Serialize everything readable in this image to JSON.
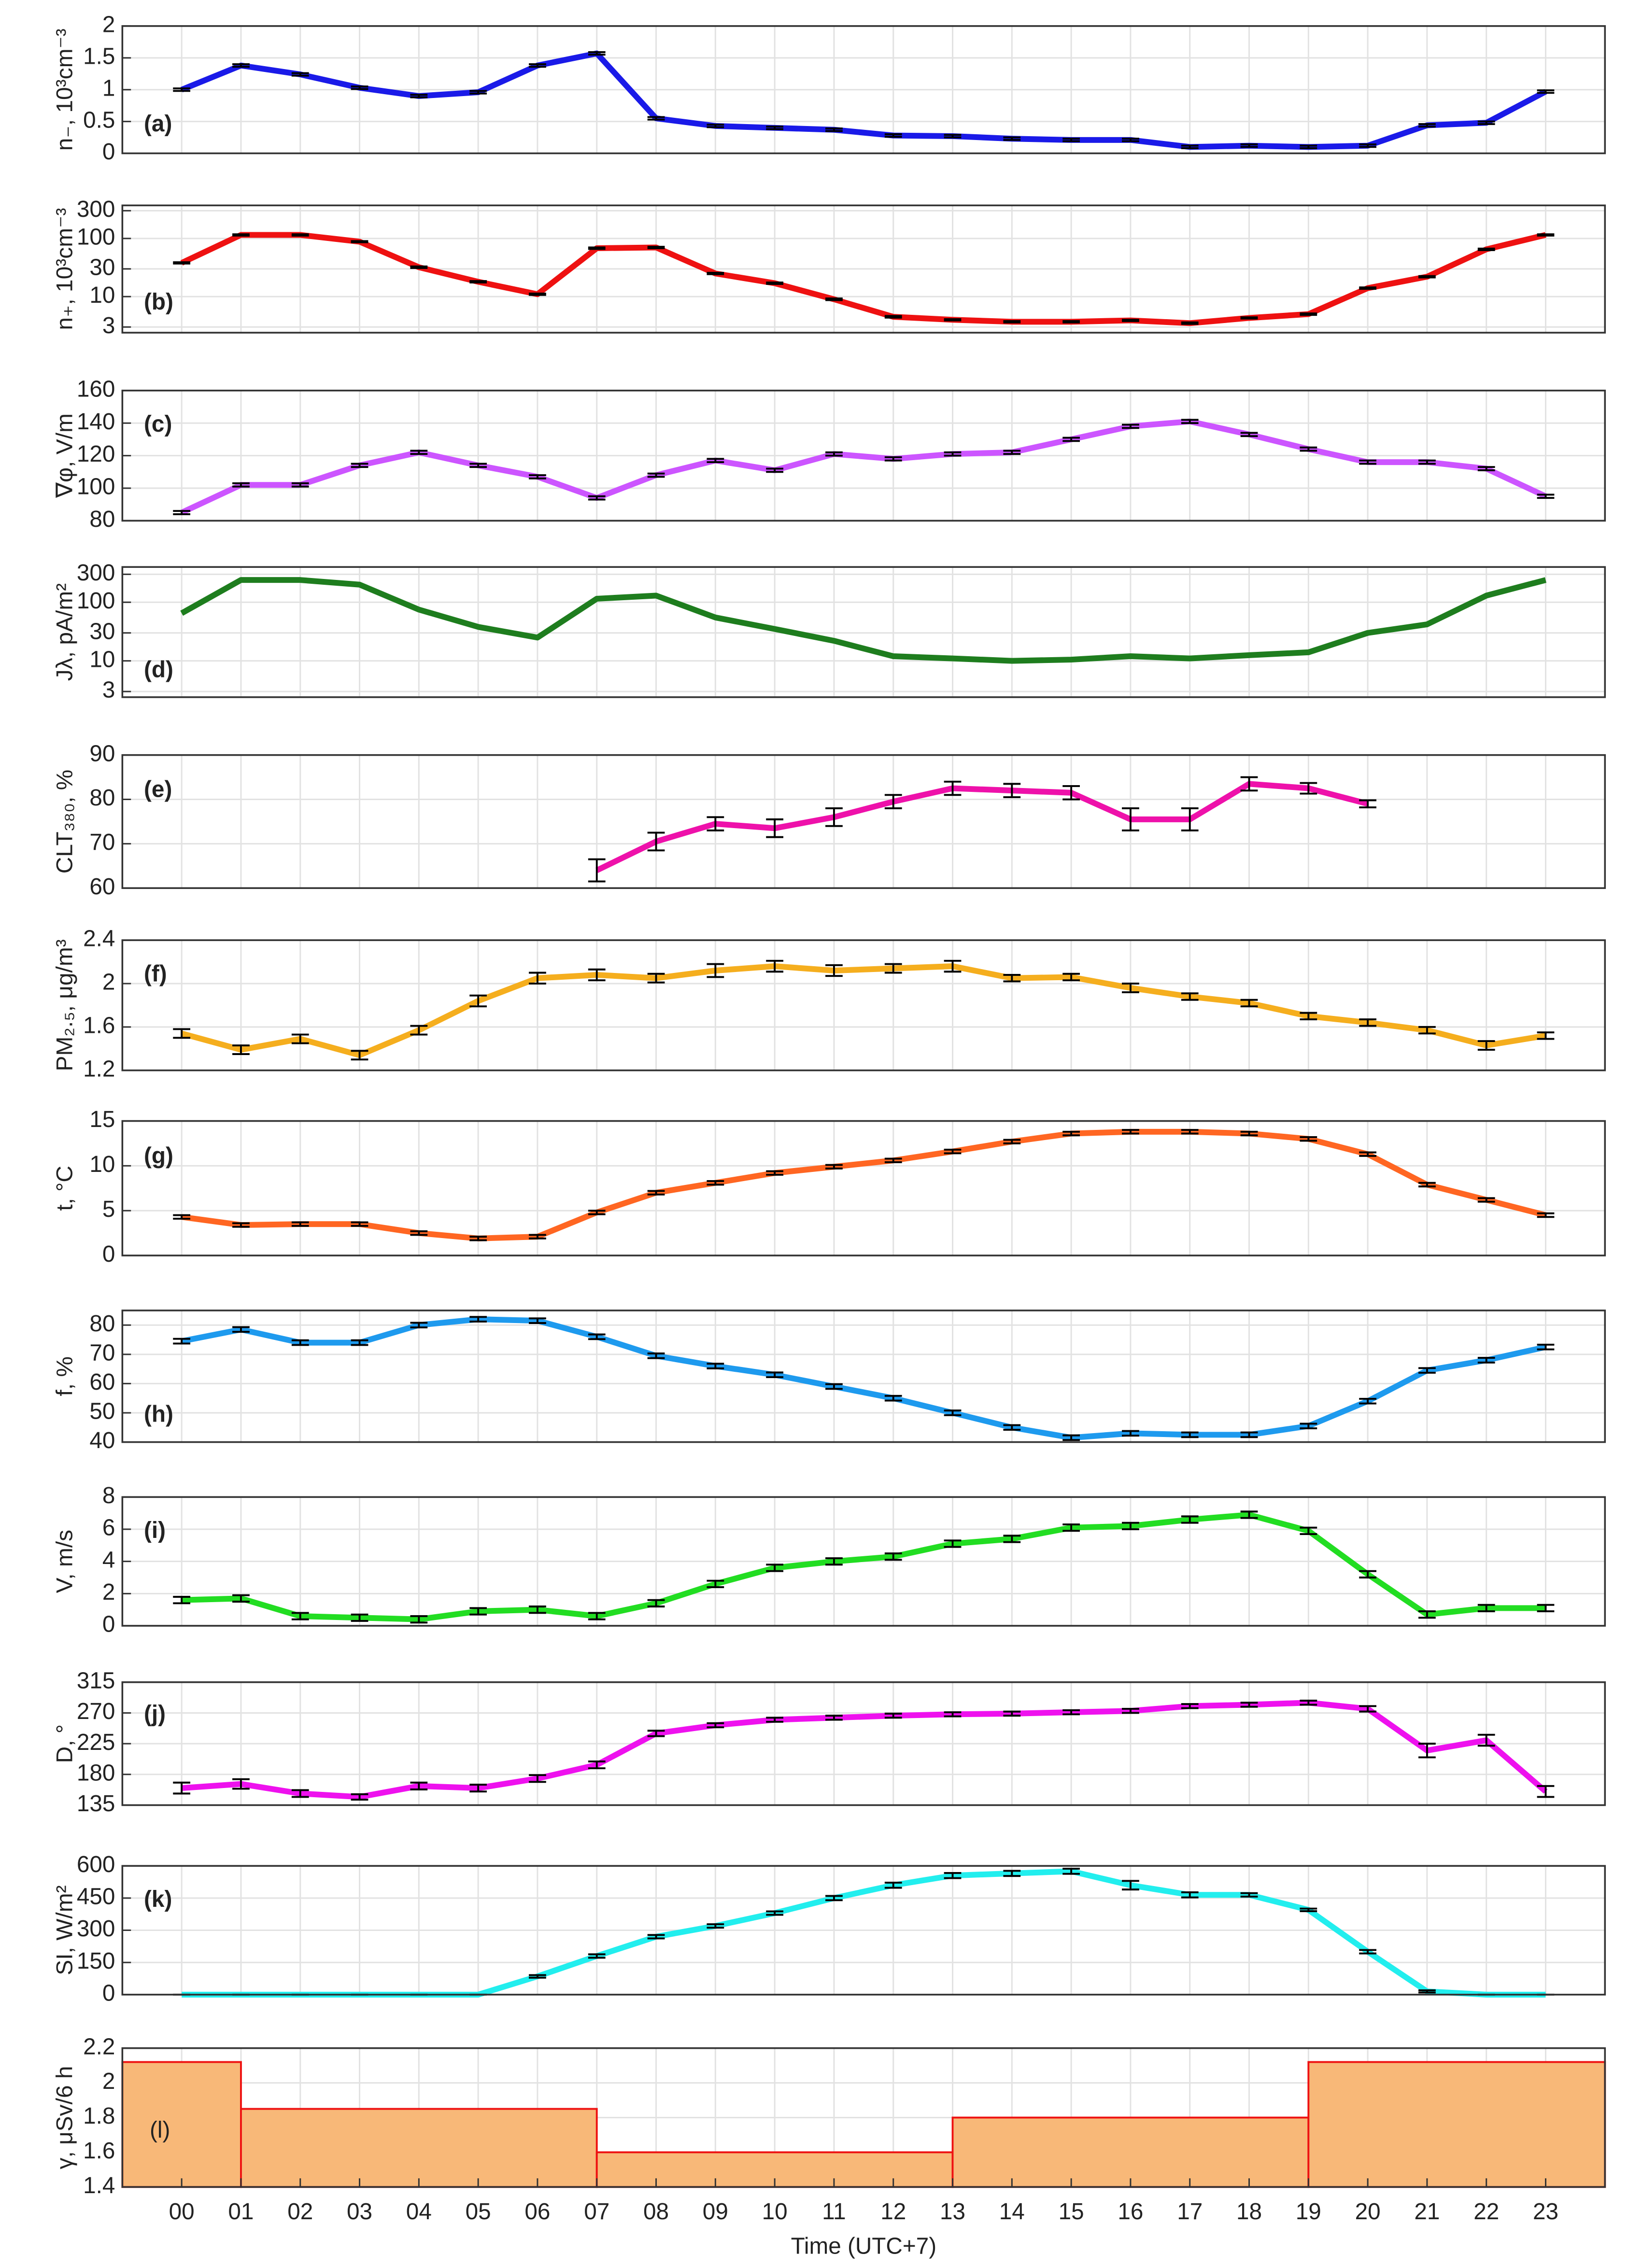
{
  "chart_data": [
    {
      "type": "line",
      "tag": "(a)",
      "ylabel": "n₋, 10³cm⁻³",
      "color": "#1a1ae8",
      "ylim": [
        0,
        2
      ],
      "yticks": [
        0,
        0.5,
        1,
        1.5,
        2
      ],
      "grid": true,
      "values": [
        1.0,
        1.38,
        1.24,
        1.03,
        0.9,
        0.96,
        1.38,
        1.57,
        0.55,
        0.43,
        0.4,
        0.37,
        0.28,
        0.27,
        0.23,
        0.21,
        0.21,
        0.1,
        0.12,
        0.1,
        0.12,
        0.44,
        0.48,
        0.97
      ],
      "errors": [
        0.02,
        0.02,
        0.02,
        0.02,
        0.02,
        0.02,
        0.02,
        0.02,
        0.02,
        0.02,
        0.02,
        0.02,
        0.02,
        0.02,
        0.02,
        0.02,
        0.02,
        0.02,
        0.02,
        0.02,
        0.02,
        0.02,
        0.02,
        0.02
      ]
    },
    {
      "type": "line",
      "tag": "(b)",
      "ylabel": "n₊, 10³cm⁻³",
      "color": "#ee1111",
      "log_y": true,
      "ylim": [
        2.4,
        370
      ],
      "yticks": [
        3,
        10,
        30,
        100,
        300
      ],
      "grid": true,
      "values": [
        38,
        115,
        115,
        88,
        32,
        18,
        11,
        68,
        70,
        25,
        17,
        9,
        4.5,
        4,
        3.7,
        3.7,
        3.9,
        3.5,
        4.3,
        5,
        14,
        22,
        65,
        115
      ],
      "errors": [
        1,
        3,
        3,
        2,
        1,
        0.5,
        0.3,
        2,
        2,
        0.7,
        0.5,
        0.3,
        0.15,
        0.1,
        0.1,
        0.1,
        0.1,
        0.1,
        0.1,
        0.15,
        0.4,
        0.6,
        2,
        3
      ]
    },
    {
      "type": "line",
      "tag": "(c)",
      "ylabel": "∇φ, V/m",
      "color": "#cc55ff",
      "ylim": [
        80,
        160
      ],
      "yticks": [
        80,
        100,
        120,
        140,
        160
      ],
      "grid": true,
      "values": [
        85,
        102,
        102,
        114,
        122,
        114,
        107,
        94,
        108,
        117,
        111,
        121,
        118,
        121,
        122,
        130,
        138,
        141,
        133,
        124,
        116,
        116,
        112,
        95
      ],
      "errors": [
        1,
        1,
        1,
        1,
        1,
        1,
        1,
        1,
        1,
        1,
        1,
        1,
        1,
        1,
        1,
        1,
        1,
        1,
        1,
        1,
        1,
        1,
        1,
        1
      ]
    },
    {
      "type": "line",
      "tag": "(d)",
      "ylabel": "Jλ, pA/m²",
      "color": "#1e7d1e",
      "log_y": true,
      "ylim": [
        2.4,
        400
      ],
      "yticks": [
        3,
        10,
        30,
        100,
        300
      ],
      "grid": true,
      "values": [
        65,
        240,
        240,
        200,
        75,
        38,
        25,
        115,
        130,
        55,
        35,
        22,
        12,
        11,
        10,
        10.5,
        12,
        11,
        12.5,
        14,
        30,
        42,
        130,
        240
      ]
    },
    {
      "type": "line",
      "tag": "(e)",
      "ylabel": "CLT₃₈₀, %",
      "color": "#ee11aa",
      "ylim": [
        60,
        90
      ],
      "yticks": [
        60,
        70,
        80,
        90
      ],
      "grid": true,
      "values": [
        null,
        null,
        null,
        null,
        null,
        null,
        null,
        64,
        70.5,
        74.5,
        73.5,
        76,
        79.5,
        82.5,
        82,
        81.5,
        75.5,
        75.5,
        83.5,
        82.5,
        79,
        null,
        null,
        null
      ],
      "errors": [
        null,
        null,
        null,
        null,
        null,
        null,
        null,
        2.5,
        2,
        1.5,
        2,
        2,
        1.5,
        1.5,
        1.5,
        1.5,
        2.5,
        2.5,
        1.5,
        1.2,
        0.8,
        null,
        null,
        null
      ]
    },
    {
      "type": "line",
      "tag": "(f)",
      "ylabel": "PM₂.₅, μg/m³",
      "color": "#f5ae1e",
      "ylim": [
        1.2,
        2.4
      ],
      "yticks": [
        1.2,
        1.6,
        2,
        2.4
      ],
      "grid": true,
      "values": [
        1.54,
        1.39,
        1.49,
        1.34,
        1.57,
        1.84,
        2.05,
        2.08,
        2.05,
        2.12,
        2.16,
        2.12,
        2.14,
        2.16,
        2.05,
        2.06,
        1.96,
        1.88,
        1.82,
        1.7,
        1.64,
        1.57,
        1.43,
        1.52
      ],
      "errors": [
        0.04,
        0.04,
        0.04,
        0.04,
        0.04,
        0.05,
        0.05,
        0.05,
        0.04,
        0.06,
        0.05,
        0.05,
        0.04,
        0.05,
        0.03,
        0.03,
        0.04,
        0.03,
        0.03,
        0.03,
        0.03,
        0.03,
        0.04,
        0.03
      ]
    },
    {
      "type": "line",
      "tag": "(g)",
      "ylabel": "t, °C",
      "color": "#ff6622",
      "ylim": [
        0,
        15
      ],
      "yticks": [
        0,
        5,
        10,
        15
      ],
      "grid": true,
      "values": [
        4.3,
        3.4,
        3.5,
        3.5,
        2.5,
        1.9,
        2.1,
        4.8,
        7,
        8.1,
        9.2,
        9.9,
        10.6,
        11.6,
        12.7,
        13.6,
        13.8,
        13.8,
        13.6,
        13,
        11.3,
        7.9,
        6.2,
        4.5
      ],
      "errors": [
        0.2,
        0.2,
        0.2,
        0.2,
        0.2,
        0.2,
        0.2,
        0.2,
        0.2,
        0.2,
        0.2,
        0.2,
        0.2,
        0.2,
        0.2,
        0.2,
        0.2,
        0.2,
        0.2,
        0.2,
        0.2,
        0.2,
        0.2,
        0.2
      ]
    },
    {
      "type": "line",
      "tag": "(h)",
      "ylabel": "f, %",
      "color": "#1e9aee",
      "ylim": [
        40,
        85
      ],
      "yticks": [
        40,
        50,
        60,
        70,
        80
      ],
      "grid": true,
      "values": [
        74.5,
        78.5,
        74,
        74,
        80,
        82,
        81.5,
        76,
        69.5,
        66,
        63,
        59,
        55,
        50,
        45,
        41.5,
        43,
        42.5,
        42.5,
        45.5,
        54,
        64.5,
        68,
        72.5
      ],
      "errors": [
        0.8,
        0.8,
        0.8,
        0.8,
        0.8,
        0.8,
        0.8,
        0.8,
        0.8,
        0.8,
        0.8,
        0.8,
        0.8,
        0.8,
        0.8,
        0.8,
        0.8,
        0.8,
        0.8,
        0.8,
        0.8,
        0.8,
        0.8,
        0.8
      ]
    },
    {
      "type": "line",
      "tag": "(i)",
      "ylabel": "V, m/s",
      "color": "#22dd22",
      "ylim": [
        0,
        8
      ],
      "yticks": [
        0,
        2,
        4,
        6,
        8
      ],
      "grid": true,
      "values": [
        1.6,
        1.7,
        0.6,
        0.5,
        0.4,
        0.9,
        1,
        0.6,
        1.4,
        2.6,
        3.6,
        4,
        4.3,
        5.1,
        5.4,
        6.1,
        6.2,
        6.6,
        6.9,
        5.9,
        3.2,
        0.7,
        1.1,
        1.1
      ],
      "errors": [
        0.2,
        0.2,
        0.2,
        0.2,
        0.2,
        0.2,
        0.2,
        0.2,
        0.2,
        0.2,
        0.2,
        0.2,
        0.2,
        0.2,
        0.2,
        0.2,
        0.2,
        0.2,
        0.2,
        0.2,
        0.2,
        0.2,
        0.2,
        0.2
      ]
    },
    {
      "type": "line",
      "tag": "(j)",
      "ylabel": "D, °",
      "color": "#ee11ee",
      "ylim": [
        135,
        315
      ],
      "yticks": [
        135,
        180,
        225,
        270,
        315
      ],
      "grid": true,
      "values": [
        160,
        166,
        152,
        147,
        163,
        160,
        174,
        194,
        240,
        252,
        260,
        263,
        266,
        268,
        269,
        271,
        273,
        280,
        282,
        285,
        276,
        215,
        230,
        155
      ],
      "errors": [
        8,
        7,
        5,
        4,
        5,
        5,
        5,
        5,
        4,
        3,
        3,
        3,
        3,
        3,
        3,
        3,
        3,
        3,
        3,
        3,
        4,
        10,
        8,
        8
      ]
    },
    {
      "type": "line",
      "tag": "(k)",
      "ylabel": "SI, W/m²",
      "color": "#22eeee",
      "ylim": [
        0,
        600
      ],
      "yticks": [
        0,
        150,
        300,
        450,
        600
      ],
      "grid": true,
      "values": [
        0,
        0,
        0,
        0,
        0,
        0,
        85,
        180,
        270,
        320,
        380,
        450,
        510,
        555,
        565,
        575,
        510,
        465,
        465,
        395,
        200,
        15,
        0,
        0
      ],
      "errors": [
        0,
        0,
        0,
        0,
        0,
        0,
        6,
        8,
        8,
        8,
        8,
        10,
        12,
        12,
        12,
        12,
        20,
        12,
        8,
        6,
        8,
        5,
        0,
        0
      ]
    },
    {
      "type": "histogram",
      "tag": "(l)",
      "ylabel": "γ, μSv/6 h",
      "color": "#f8b878",
      "edge_color": "#ee1111",
      "ylim": [
        1.4,
        2.2
      ],
      "yticks": [
        1.4,
        1.6,
        1.8,
        2,
        2.2
      ],
      "grid": true,
      "bins": [
        -1,
        1,
        7,
        13,
        19,
        24
      ],
      "values": [
        2.12,
        1.85,
        1.6,
        1.8,
        2.12
      ],
      "xlabel": "Time (UTC+7)",
      "xlim": [
        -1,
        24
      ],
      "xticks": [
        {
          "value": 0,
          "label": "00"
        },
        {
          "value": 1,
          "label": "01"
        },
        {
          "value": 2,
          "label": "02"
        },
        {
          "value": 3,
          "label": "03"
        },
        {
          "value": 4,
          "label": "04"
        },
        {
          "value": 5,
          "label": "05"
        },
        {
          "value": 6,
          "label": "06"
        },
        {
          "value": 7,
          "label": "07"
        },
        {
          "value": 8,
          "label": "08"
        },
        {
          "value": 9,
          "label": "09"
        },
        {
          "value": 10,
          "label": "10"
        },
        {
          "value": 11,
          "label": "11"
        },
        {
          "value": 12,
          "label": "12"
        },
        {
          "value": 13,
          "label": "13"
        },
        {
          "value": 14,
          "label": "14"
        },
        {
          "value": 15,
          "label": "15"
        },
        {
          "value": 16,
          "label": "16"
        },
        {
          "value": 17,
          "label": "17"
        },
        {
          "value": 18,
          "label": "18"
        },
        {
          "value": 19,
          "label": "19"
        },
        {
          "value": 20,
          "label": "20"
        },
        {
          "value": 21,
          "label": "21"
        },
        {
          "value": 22,
          "label": "22"
        },
        {
          "value": 23,
          "label": "23"
        }
      ]
    }
  ]
}
